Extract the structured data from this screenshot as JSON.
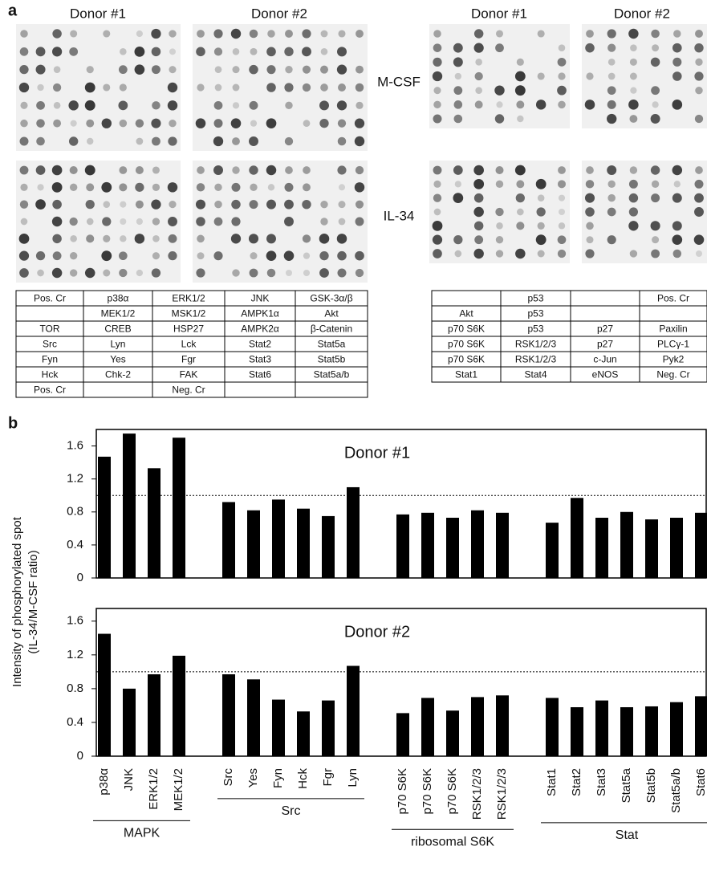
{
  "panel_a": {
    "label": "a",
    "donor_headers": [
      "Donor #1",
      "Donor #2",
      "Donor #1",
      "Donor #2"
    ],
    "row_labels": [
      "M-CSF",
      "IL-34"
    ],
    "table_left": {
      "rows": [
        [
          "Pos. Cr",
          "p38α",
          "ERK1/2",
          "JNK",
          "GSK-3α/β"
        ],
        [
          null,
          "MEK1/2",
          "MSK1/2",
          "AMPK1α",
          "Akt"
        ],
        [
          "TOR",
          "CREB",
          "HSP27",
          "AMPK2α",
          "β-Catenin"
        ],
        [
          "Src",
          "Lyn",
          "Lck",
          "Stat2",
          "Stat5a"
        ],
        [
          "Fyn",
          "Yes",
          "Fgr",
          "Stat3",
          "Stat5b"
        ],
        [
          "Hck",
          "Chk-2",
          "FAK",
          "Stat6",
          "Stat5a/b"
        ],
        [
          "Pos. Cr",
          null,
          "Neg. Cr",
          null,
          null
        ]
      ]
    },
    "table_right": {
      "rows": [
        [
          null,
          "p53",
          null,
          "Pos. Cr"
        ],
        [
          "Akt",
          "p53",
          null,
          null
        ],
        [
          "p70 S6K",
          "p53",
          "p27",
          "Paxilin"
        ],
        [
          "p70 S6K",
          "RSK1/2/3",
          "p27",
          "PLCγ-1"
        ],
        [
          "p70 S6K",
          "RSK1/2/3",
          "c-Jun",
          "Pyk2"
        ],
        [
          "Stat1",
          "Stat4",
          "eNOS",
          "Neg. Cr"
        ]
      ]
    }
  },
  "panel_b_label": "b",
  "chart_data": [
    {
      "type": "bar",
      "title": "Donor #1",
      "ylabel": [
        "Intensity of phosphorylated spot",
        "(IL-34/M-CSF ratio)"
      ],
      "color": "#000000",
      "ylim": [
        0,
        1.8
      ],
      "yticks": [
        0,
        0.4,
        0.8,
        1.2,
        1.6
      ],
      "reference_line": 1,
      "values": [
        1.47,
        1.75,
        1.33,
        1.7,
        0.92,
        0.82,
        0.95,
        0.84,
        0.75,
        1.1,
        0.77,
        0.79,
        0.73,
        0.82,
        0.79,
        0.67,
        0.97,
        0.73,
        0.8,
        0.71,
        0.73,
        0.79
      ]
    },
    {
      "type": "bar",
      "title": "Donor #2",
      "color": "#000000",
      "ylim": [
        0,
        1.75
      ],
      "yticks": [
        0,
        0.4,
        0.8,
        1.2,
        1.6
      ],
      "reference_line": 1,
      "values": [
        1.45,
        0.8,
        0.97,
        1.19,
        0.97,
        0.91,
        0.67,
        0.53,
        0.66,
        1.07,
        0.51,
        0.69,
        0.54,
        0.7,
        0.72,
        0.69,
        0.58,
        0.66,
        0.58,
        0.59,
        0.64,
        0.71
      ],
      "groups": [
        {
          "label": "MAPK",
          "categories": [
            "p38α",
            "JNK",
            "ERK1/2",
            "MEK1/2"
          ]
        },
        {
          "label": "Src",
          "categories": [
            "Src",
            "Yes",
            "Fyn",
            "Hck",
            "Fgr",
            "Lyn"
          ]
        },
        {
          "label": "ribosomal S6K",
          "categories": [
            "p70 S6K",
            "p70 S6K",
            "p70 S6K",
            "RSK1/2/3",
            "RSK1/2/3"
          ]
        },
        {
          "label": "Stat",
          "categories": [
            "Stat1",
            "Stat2",
            "Stat3",
            "Stat5a",
            "Stat5b",
            "Stat5a/b",
            "Stat6"
          ]
        }
      ]
    }
  ]
}
